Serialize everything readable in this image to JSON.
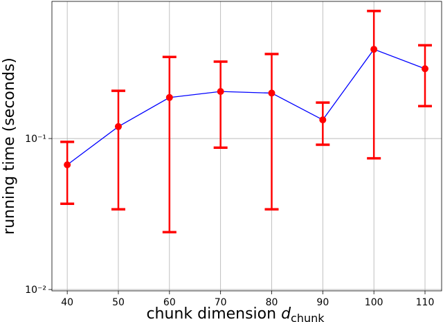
{
  "chart_data": {
    "type": "errorbar-line",
    "x_label": {
      "text": "chunk dimension ",
      "symbol": "d",
      "subscript": "chunk"
    },
    "y_label": "running time (seconds)",
    "x": [
      40,
      50,
      60,
      70,
      80,
      90,
      100,
      110
    ],
    "values": [
      0.067,
      0.12,
      0.187,
      0.205,
      0.2,
      0.133,
      0.39,
      0.29
    ],
    "lower": [
      0.037,
      0.034,
      0.024,
      0.087,
      0.034,
      0.091,
      0.074,
      0.164
    ],
    "upper": [
      0.095,
      0.207,
      0.347,
      0.323,
      0.363,
      0.173,
      0.7,
      0.415
    ],
    "line_color": "#0000ff",
    "marker_color": "#ff0000",
    "xlim": [
      37,
      113.25
    ],
    "xticks": [
      40,
      50,
      60,
      70,
      80,
      90,
      100,
      110
    ],
    "ylim": [
      0.0098,
      0.81
    ],
    "y_scale": "log",
    "yticks": [
      {
        "value": 0.01,
        "label": "10⁻²"
      },
      {
        "value": 0.1,
        "label": "10⁻¹"
      }
    ],
    "grid": true
  }
}
